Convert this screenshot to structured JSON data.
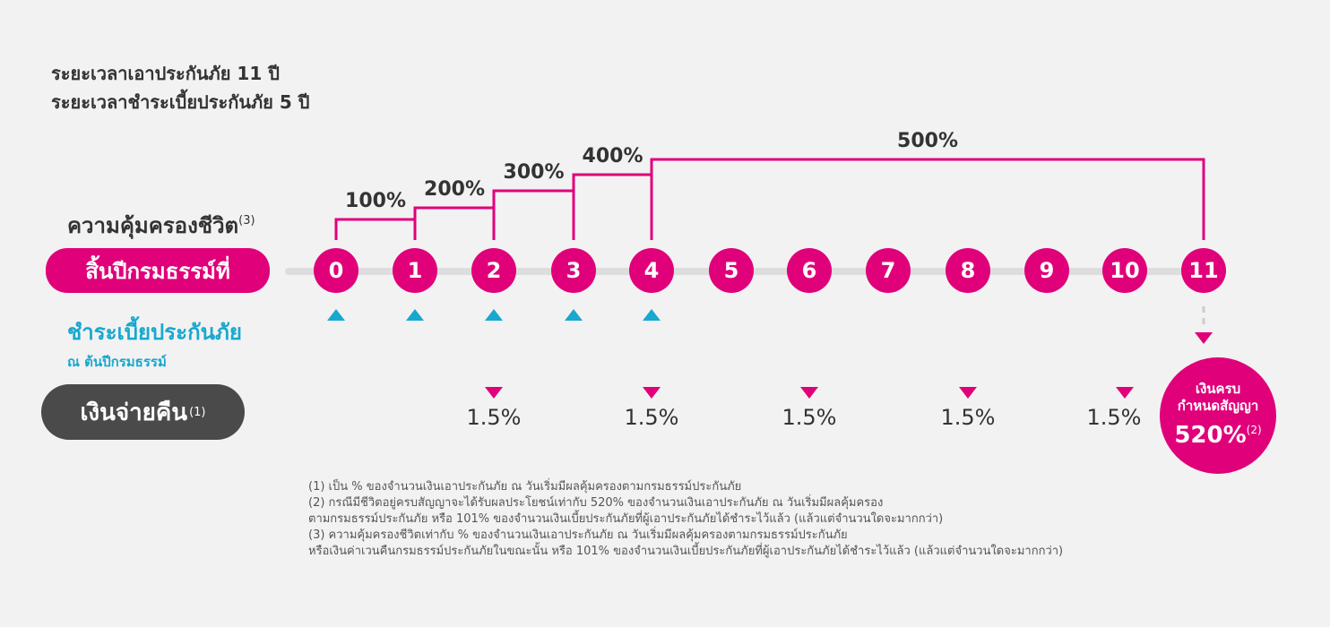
{
  "header": {
    "coverage_period": "ระยะเวลาเอาประกันภัย 11 ปี",
    "payment_period": "ระยะเวลาชำระเบี้ยประกันภัย 5 ปี"
  },
  "life_coverage": {
    "label": "ความคุ้มครองชีวิต",
    "note_ref": "(3)",
    "steps": [
      {
        "label": "100%",
        "from_year": 0,
        "to_year": 1
      },
      {
        "label": "200%",
        "from_year": 1,
        "to_year": 2
      },
      {
        "label": "300%",
        "from_year": 2,
        "to_year": 3
      },
      {
        "label": "400%",
        "from_year": 3,
        "to_year": 4
      },
      {
        "label": "500%",
        "from_year": 4,
        "to_year": 11
      }
    ]
  },
  "policy_year": {
    "label": "สิ้นปีกรมธรรม์ที่",
    "years": [
      "0",
      "1",
      "2",
      "3",
      "4",
      "5",
      "6",
      "7",
      "8",
      "9",
      "10",
      "11"
    ]
  },
  "premium": {
    "label": "ชำระเบี้ยประกันภัย",
    "sublabel": "ณ ต้นปีกรมธรรม์",
    "paid_years": [
      0,
      1,
      2,
      3,
      4
    ]
  },
  "refund": {
    "label": "เงินจ่ายคืน",
    "note_ref": "(1)",
    "payouts": [
      {
        "year": 2,
        "value": "1.5%"
      },
      {
        "year": 4,
        "value": "1.5%"
      },
      {
        "year": 6,
        "value": "1.5%"
      },
      {
        "year": 8,
        "value": "1.5%"
      },
      {
        "year": 10,
        "value": "1.5%"
      }
    ]
  },
  "maturity": {
    "line1": "เงินครบ",
    "line2": "กำหนดสัญญา",
    "value": "520%",
    "note_ref": "(2)"
  },
  "footnotes": [
    "(1) เป็น % ของจำนวนเงินเอาประกันภัย ณ วันเริ่มมีผลคุ้มครองตามกรมธรรม์ประกันภัย",
    "(2) กรณีมีชีวิตอยู่ครบสัญญาจะได้รับผลประโยชน์เท่ากับ 520% ของจำนวนเงินเอาประกันภัย ณ วันเริ่มมีผลคุ้มครอง",
    "ตามกรมธรรม์ประกันภัย หรือ 101% ของจำนวนเงินเบี้ยประกันภัยที่ผู้เอาประกันภัยได้ชำระไว้แล้ว (แล้วแต่จำนวนใดจะมากกว่า)",
    "(3) ความคุ้มครองชีวิตเท่ากับ % ของจำนวนเงินเอาประกันภัย ณ วันเริ่มมีผลคุ้มครองตามกรมธรรม์ประกันภัย",
    "หรือเงินค่าเวนคืนกรมธรรม์ประกันภัยในขณะนั้น หรือ 101% ของจำนวนเงินเบี้ยประกันภัยที่ผู้เอาประกันภัยได้ชำระไว้แล้ว (แล้วแต่จำนวนใดจะมากกว่า)"
  ],
  "colors": {
    "accent": "#e0007a",
    "premium": "#17a8cf",
    "dark_pill": "#4a4a4a"
  }
}
